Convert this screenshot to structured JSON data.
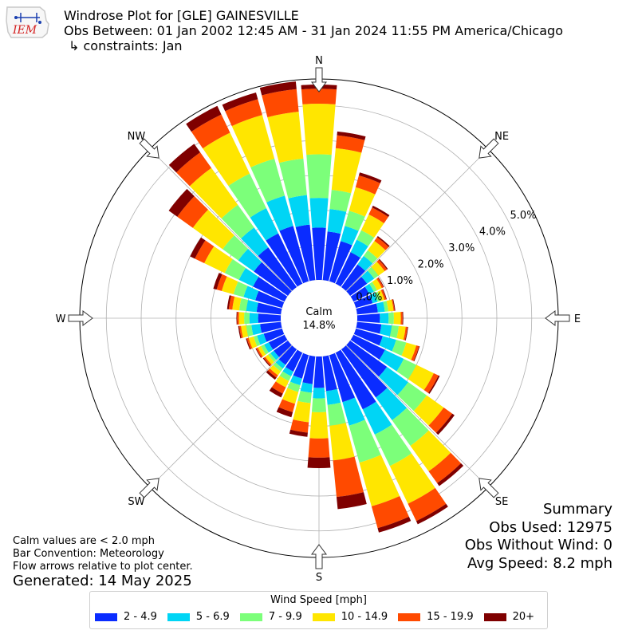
{
  "header": {
    "title": "Windrose Plot for [GLE] GAINESVILLE",
    "period": "Obs Between: 01 Jan 2002 12:45 AM - 31 Jan 2024 11:55 PM America/Chicago",
    "constraints": "↳ constraints: Jan",
    "logo_text": "IEM"
  },
  "notes": {
    "calm_def": "Calm values are < 2.0 mph",
    "convention": "Bar Convention: Meteorology",
    "arrows": "Flow arrows relative to plot center.",
    "generated": "Generated: 14 May 2025"
  },
  "summary": {
    "heading": "Summary",
    "obs_used": "Obs Used: 12975",
    "obs_without_wind": "Obs Without Wind: 0",
    "avg_speed": "Avg Speed: 8.2 mph"
  },
  "legend": {
    "title": "Wind Speed [mph]"
  },
  "chart_data": {
    "type": "windrose",
    "calm_label": "Calm",
    "calm_value": "14.8%",
    "directions": [
      "N",
      "NE",
      "E",
      "SE",
      "S",
      "SW",
      "W",
      "NW"
    ],
    "radial_ticks": [
      0.0,
      1.0,
      2.0,
      3.0,
      4.0,
      5.0
    ],
    "radial_tick_labels": [
      "0.0%",
      "1.0%",
      "2.0%",
      "3.0%",
      "4.0%",
      "5.0%"
    ],
    "rmax": 5.76,
    "bins": [
      {
        "label": "2 - 4.9",
        "color": "#0a2cff"
      },
      {
        "label": "5 - 6.9",
        "color": "#00d5f5"
      },
      {
        "label": "7 - 9.9",
        "color": "#7cff7a"
      },
      {
        "label": "10 - 14.9",
        "color": "#ffe600"
      },
      {
        "label": "15 - 19.9",
        "color": "#ff4a00"
      },
      {
        "label": "20+",
        "color": "#7f0000"
      }
    ],
    "sectors_deg": [
      0,
      10,
      20,
      30,
      40,
      50,
      60,
      70,
      80,
      90,
      100,
      110,
      120,
      130,
      140,
      150,
      160,
      170,
      180,
      190,
      200,
      210,
      220,
      230,
      240,
      250,
      260,
      270,
      280,
      290,
      300,
      310,
      320,
      330,
      340,
      350
    ],
    "cumulative_percent": [
      [
        1.5,
        2.35,
        3.6,
        5.05,
        5.48,
        5.6
      ],
      [
        1.4,
        2.05,
        2.6,
        3.8,
        4.17,
        4.28
      ],
      [
        1.2,
        1.65,
        2.1,
        2.8,
        3.15,
        3.24
      ],
      [
        1.0,
        1.4,
        1.7,
        2.2,
        2.42,
        2.48
      ],
      [
        0.8,
        1.1,
        1.3,
        1.63,
        1.76,
        1.8
      ],
      [
        0.6,
        0.85,
        1.0,
        1.22,
        1.3,
        1.33
      ],
      [
        0.5,
        0.65,
        0.75,
        0.9,
        0.95,
        0.97
      ],
      [
        0.5,
        0.65,
        0.75,
        0.85,
        0.9,
        0.92
      ],
      [
        0.6,
        0.8,
        0.9,
        1.05,
        1.08,
        1.1
      ],
      [
        0.65,
        0.9,
        1.05,
        1.25,
        1.3,
        1.32
      ],
      [
        0.7,
        1.0,
        1.2,
        1.4,
        1.45,
        1.47
      ],
      [
        0.8,
        1.2,
        1.5,
        1.8,
        1.88,
        1.9
      ],
      [
        1.0,
        1.6,
        2.0,
        2.55,
        2.7,
        2.74
      ],
      [
        1.3,
        2.05,
        2.7,
        3.3,
        3.6,
        3.68
      ],
      [
        1.7,
        2.5,
        3.4,
        4.3,
        4.72,
        4.82
      ],
      [
        1.8,
        2.6,
        3.6,
        4.8,
        5.35,
        5.45
      ],
      [
        1.4,
        2.1,
        3.2,
        4.5,
        5.15,
        5.28
      ],
      [
        1.0,
        1.4,
        2.0,
        3.0,
        4.05,
        4.4
      ],
      [
        0.9,
        1.2,
        1.6,
        2.35,
        2.9,
        3.2
      ],
      [
        0.8,
        1.05,
        1.35,
        1.9,
        2.2,
        2.32
      ],
      [
        0.7,
        0.9,
        1.1,
        1.45,
        1.7,
        1.85
      ],
      [
        0.6,
        0.75,
        0.9,
        1.1,
        1.3,
        1.42
      ],
      [
        0.55,
        0.68,
        0.78,
        0.92,
        1.0,
        1.07
      ],
      [
        0.5,
        0.62,
        0.7,
        0.8,
        0.85,
        0.88
      ],
      [
        0.5,
        0.65,
        0.75,
        0.85,
        0.9,
        0.92
      ],
      [
        0.55,
        0.75,
        0.85,
        1.0,
        1.05,
        1.08
      ],
      [
        0.6,
        0.85,
        1.0,
        1.15,
        1.2,
        1.23
      ],
      [
        0.65,
        0.9,
        1.05,
        1.2,
        1.25,
        1.27
      ],
      [
        0.7,
        1.0,
        1.2,
        1.4,
        1.5,
        1.55
      ],
      [
        0.8,
        1.15,
        1.45,
        1.8,
        1.95,
        2.05
      ],
      [
        1.0,
        1.45,
        1.9,
        2.55,
        2.85,
        3.0
      ],
      [
        1.2,
        1.75,
        2.3,
        3.35,
        3.9,
        4.2
      ],
      [
        1.4,
        2.1,
        2.9,
        4.2,
        4.75,
        5.05
      ],
      [
        1.6,
        2.4,
        3.5,
        4.8,
        5.38,
        5.65
      ],
      [
        1.65,
        2.55,
        3.65,
        4.95,
        5.42,
        5.62
      ],
      [
        1.6,
        2.45,
        3.5,
        4.85,
        5.5,
        5.72
      ]
    ]
  }
}
